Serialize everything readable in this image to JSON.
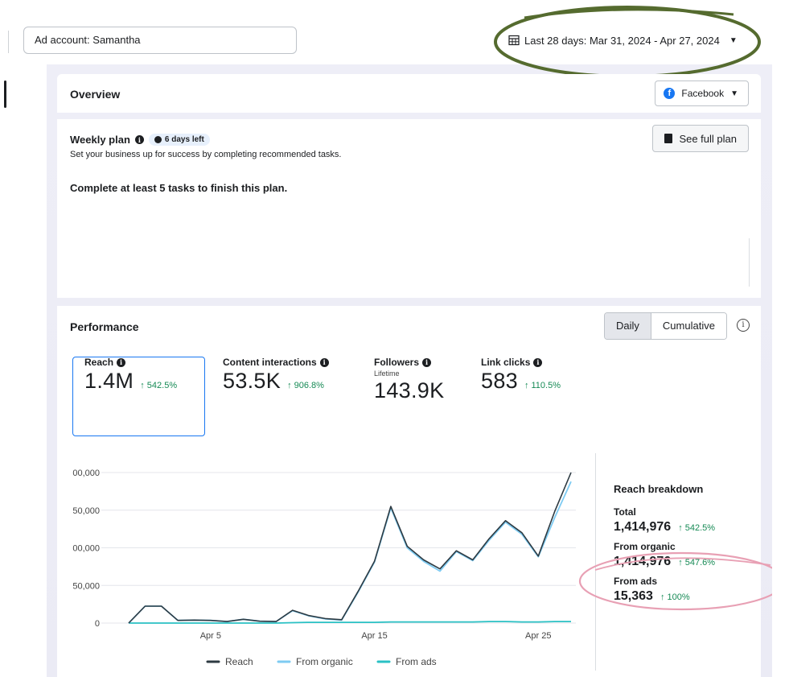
{
  "header": {
    "account_label": "Ad account: Samantha",
    "date_range": "Last 28 days: Mar 31, 2024 - Apr 27, 2024",
    "calendar_icon": "calendar-icon",
    "caret_icon": "caret-down-icon"
  },
  "overview": {
    "title": "Overview",
    "platform": "Facebook"
  },
  "weekly_plan": {
    "title": "Weekly plan",
    "badge": "6 days left",
    "subtitle": "Set your business up for success by completing recommended tasks.",
    "goal": "Complete at least 5 tasks to finish this plan.",
    "see_full_plan": "See full plan"
  },
  "performance": {
    "title": "Performance",
    "toggle": [
      "Daily",
      "Cumulative"
    ],
    "active_toggle": "Daily",
    "metrics": [
      {
        "label": "Reach",
        "value": "1.4M",
        "change": "↑ 542.5%",
        "sub": ""
      },
      {
        "label": "Content interactions",
        "value": "53.5K",
        "change": "↑ 906.8%",
        "sub": ""
      },
      {
        "label": "Followers",
        "value": "143.9K",
        "change": "",
        "sub": "Lifetime"
      },
      {
        "label": "Link clicks",
        "value": "583",
        "change": "↑ 110.5%",
        "sub": ""
      }
    ]
  },
  "chart_data": {
    "type": "line",
    "title": "",
    "xlabel": "",
    "ylabel": "",
    "ylim": [
      0,
      200000
    ],
    "ytick_labels": [
      "0",
      "50,000",
      "00,000",
      "50,000",
      "00,000"
    ],
    "xtick_labels": [
      "Apr 5",
      "Apr 15",
      "Apr 25"
    ],
    "x_count": 28,
    "legend": "bottom",
    "colors": {
      "Reach": "#2d3a42",
      "From organic": "#7ecbf2",
      "From ads": "#2ac1c4"
    },
    "series": [
      {
        "name": "Reach",
        "values": [
          0,
          22500,
          22500,
          3500,
          4000,
          3500,
          2000,
          5000,
          2500,
          2000,
          17000,
          10000,
          6000,
          4500,
          42000,
          82000,
          155000,
          102000,
          84000,
          72000,
          96000,
          84000,
          112000,
          136000,
          120000,
          89000,
          148000,
          200000
        ]
      },
      {
        "name": "From organic",
        "values": [
          0,
          22500,
          22500,
          3500,
          4000,
          3500,
          2000,
          5000,
          2500,
          2000,
          16500,
          9500,
          5500,
          4000,
          41000,
          81000,
          153000,
          100000,
          82000,
          69000,
          95000,
          83000,
          110000,
          134000,
          118000,
          88000,
          140000,
          188000
        ]
      },
      {
        "name": "From ads",
        "values": [
          0,
          0,
          0,
          0,
          0,
          0,
          0,
          0,
          0,
          0,
          500,
          1000,
          1000,
          1000,
          1000,
          1000,
          1500,
          1500,
          1500,
          1500,
          1500,
          1500,
          2000,
          2000,
          1500,
          1500,
          2000,
          2000
        ]
      }
    ]
  },
  "breakdown": {
    "title": "Reach breakdown",
    "items": [
      {
        "label": "Total",
        "value": "1,414,976",
        "change": "↑ 542.5%"
      },
      {
        "label": "From organic",
        "value": "1,414,976",
        "change": "↑ 547.6%"
      },
      {
        "label": "From ads",
        "value": "15,363",
        "change": "↑ 100%"
      }
    ]
  }
}
